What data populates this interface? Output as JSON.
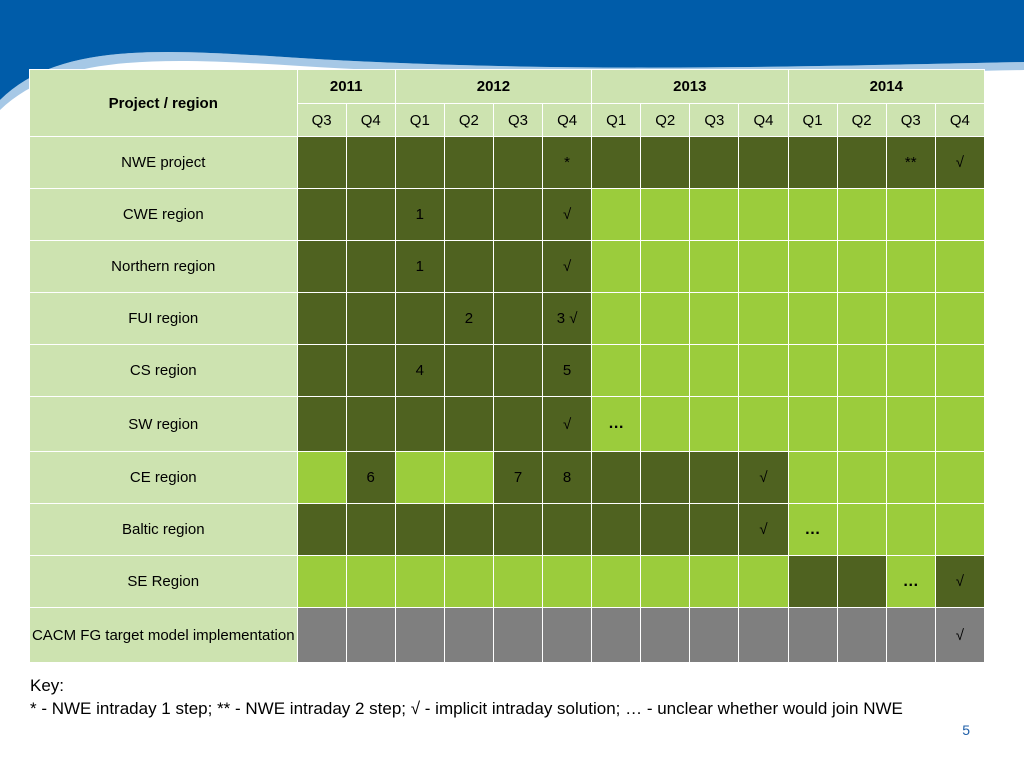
{
  "table": {
    "corner": "Project / region",
    "years": [
      {
        "label": "2011",
        "span": 2
      },
      {
        "label": "2012",
        "span": 4
      },
      {
        "label": "2013",
        "span": 4
      },
      {
        "label": "2014",
        "span": 4
      }
    ],
    "quarters": [
      "Q3",
      "Q4",
      "Q1",
      "Q2",
      "Q3",
      "Q4",
      "Q1",
      "Q2",
      "Q3",
      "Q4",
      "Q1",
      "Q2",
      "Q3",
      "Q4"
    ],
    "rows": [
      {
        "label": "NWE project",
        "cells": [
          [
            "d",
            ""
          ],
          [
            "d",
            ""
          ],
          [
            "d",
            ""
          ],
          [
            "d",
            ""
          ],
          [
            "d",
            ""
          ],
          [
            "d",
            "*"
          ],
          [
            "d",
            ""
          ],
          [
            "d",
            ""
          ],
          [
            "d",
            ""
          ],
          [
            "d",
            ""
          ],
          [
            "d",
            ""
          ],
          [
            "d",
            ""
          ],
          [
            "d",
            "**"
          ],
          [
            "d",
            "√"
          ]
        ]
      },
      {
        "label": "CWE region",
        "cells": [
          [
            "d",
            ""
          ],
          [
            "d",
            ""
          ],
          [
            "d",
            "1"
          ],
          [
            "d",
            ""
          ],
          [
            "d",
            ""
          ],
          [
            "d",
            "√"
          ],
          [
            "l",
            ""
          ],
          [
            "l",
            ""
          ],
          [
            "l",
            ""
          ],
          [
            "l",
            ""
          ],
          [
            "l",
            ""
          ],
          [
            "l",
            ""
          ],
          [
            "l",
            ""
          ],
          [
            "l",
            ""
          ]
        ]
      },
      {
        "label": "Northern region",
        "cells": [
          [
            "d",
            ""
          ],
          [
            "d",
            ""
          ],
          [
            "d",
            "1"
          ],
          [
            "d",
            ""
          ],
          [
            "d",
            ""
          ],
          [
            "d",
            "√"
          ],
          [
            "l",
            ""
          ],
          [
            "l",
            ""
          ],
          [
            "l",
            ""
          ],
          [
            "l",
            ""
          ],
          [
            "l",
            ""
          ],
          [
            "l",
            ""
          ],
          [
            "l",
            ""
          ],
          [
            "l",
            ""
          ]
        ]
      },
      {
        "label": "FUI region",
        "cells": [
          [
            "d",
            ""
          ],
          [
            "d",
            ""
          ],
          [
            "d",
            ""
          ],
          [
            "d",
            "2"
          ],
          [
            "d",
            ""
          ],
          [
            "d",
            "3 √"
          ],
          [
            "l",
            ""
          ],
          [
            "l",
            ""
          ],
          [
            "l",
            ""
          ],
          [
            "l",
            ""
          ],
          [
            "l",
            ""
          ],
          [
            "l",
            ""
          ],
          [
            "l",
            ""
          ],
          [
            "l",
            ""
          ]
        ]
      },
      {
        "label": "CS region",
        "cells": [
          [
            "d",
            ""
          ],
          [
            "d",
            ""
          ],
          [
            "d",
            "4"
          ],
          [
            "d",
            ""
          ],
          [
            "d",
            ""
          ],
          [
            "d",
            "5"
          ],
          [
            "l",
            ""
          ],
          [
            "l",
            ""
          ],
          [
            "l",
            ""
          ],
          [
            "l",
            ""
          ],
          [
            "l",
            ""
          ],
          [
            "l",
            ""
          ],
          [
            "l",
            ""
          ],
          [
            "l",
            ""
          ]
        ]
      },
      {
        "label": "SW region",
        "cells": [
          [
            "d",
            ""
          ],
          [
            "d",
            ""
          ],
          [
            "d",
            ""
          ],
          [
            "d",
            ""
          ],
          [
            "d",
            ""
          ],
          [
            "d",
            "√"
          ],
          [
            "l",
            "…"
          ],
          [
            "l",
            ""
          ],
          [
            "l",
            ""
          ],
          [
            "l",
            ""
          ],
          [
            "l",
            ""
          ],
          [
            "l",
            ""
          ],
          [
            "l",
            ""
          ],
          [
            "l",
            ""
          ]
        ]
      },
      {
        "label": "CE region",
        "cells": [
          [
            "l",
            ""
          ],
          [
            "d",
            "6"
          ],
          [
            "l",
            ""
          ],
          [
            "l",
            ""
          ],
          [
            "d",
            "7"
          ],
          [
            "d",
            "8"
          ],
          [
            "d",
            ""
          ],
          [
            "d",
            ""
          ],
          [
            "d",
            ""
          ],
          [
            "d",
            "√"
          ],
          [
            "l",
            ""
          ],
          [
            "l",
            ""
          ],
          [
            "l",
            ""
          ],
          [
            "l",
            ""
          ]
        ]
      },
      {
        "label": "Baltic region",
        "cells": [
          [
            "d",
            ""
          ],
          [
            "d",
            ""
          ],
          [
            "d",
            ""
          ],
          [
            "d",
            ""
          ],
          [
            "d",
            ""
          ],
          [
            "d",
            ""
          ],
          [
            "d",
            ""
          ],
          [
            "d",
            ""
          ],
          [
            "d",
            ""
          ],
          [
            "d",
            "√"
          ],
          [
            "l",
            "…"
          ],
          [
            "l",
            ""
          ],
          [
            "l",
            ""
          ],
          [
            "l",
            ""
          ]
        ]
      },
      {
        "label": "SE Region",
        "cells": [
          [
            "l",
            ""
          ],
          [
            "l",
            ""
          ],
          [
            "l",
            ""
          ],
          [
            "l",
            ""
          ],
          [
            "l",
            ""
          ],
          [
            "l",
            ""
          ],
          [
            "l",
            ""
          ],
          [
            "l",
            ""
          ],
          [
            "l",
            ""
          ],
          [
            "l",
            ""
          ],
          [
            "d",
            ""
          ],
          [
            "d",
            ""
          ],
          [
            "l",
            "…"
          ],
          [
            "d",
            "√"
          ]
        ]
      },
      {
        "label": "CACM FG target model implementation",
        "cells": [
          [
            "g",
            ""
          ],
          [
            "g",
            ""
          ],
          [
            "g",
            ""
          ],
          [
            "g",
            ""
          ],
          [
            "g",
            ""
          ],
          [
            "g",
            ""
          ],
          [
            "g",
            ""
          ],
          [
            "g",
            ""
          ],
          [
            "g",
            ""
          ],
          [
            "g",
            ""
          ],
          [
            "g",
            ""
          ],
          [
            "g",
            ""
          ],
          [
            "g",
            ""
          ],
          [
            "g",
            "√"
          ]
        ]
      }
    ]
  },
  "key": {
    "title": "Key:",
    "text": "* - NWE intraday 1 step; ** - NWE intraday 2 step; √ - implicit intraday solution; … - unclear whether would join NWE"
  },
  "page_number": "5",
  "colors": {
    "header_bg": "#cde3b0",
    "dark_cell": "#4f6220",
    "light_cell": "#9bcc3c",
    "grey_cell": "#7f7f7f",
    "mark_color": "#ffff00",
    "banner_blue": "#005ca9"
  }
}
